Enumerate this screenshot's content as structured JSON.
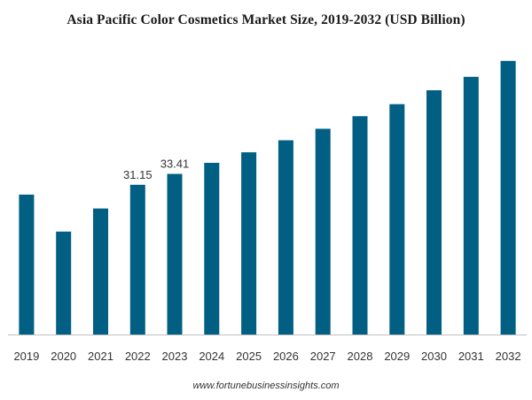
{
  "chart_data": {
    "type": "bar",
    "title": "Asia Pacific Color Cosmetics Market Size, 2019-2032 (USD Billion)",
    "xlabel": "",
    "ylabel": "",
    "categories": [
      "2019",
      "2020",
      "2021",
      "2022",
      "2023",
      "2024",
      "2025",
      "2026",
      "2027",
      "2028",
      "2029",
      "2030",
      "2031",
      "2032"
    ],
    "values": [
      29.1,
      21.4,
      26.2,
      31.15,
      33.41,
      35.7,
      37.9,
      40.4,
      42.8,
      45.4,
      47.9,
      50.8,
      53.6,
      56.9
    ],
    "data_labels": {
      "3": "31.15",
      "4": "33.41"
    },
    "ylim": [
      0,
      60
    ],
    "grid": false,
    "legend": "none",
    "bar_color": "#005f83",
    "axis_color": "#bfbfbf"
  },
  "source_text": "www.fortunebusinessinsights.com"
}
